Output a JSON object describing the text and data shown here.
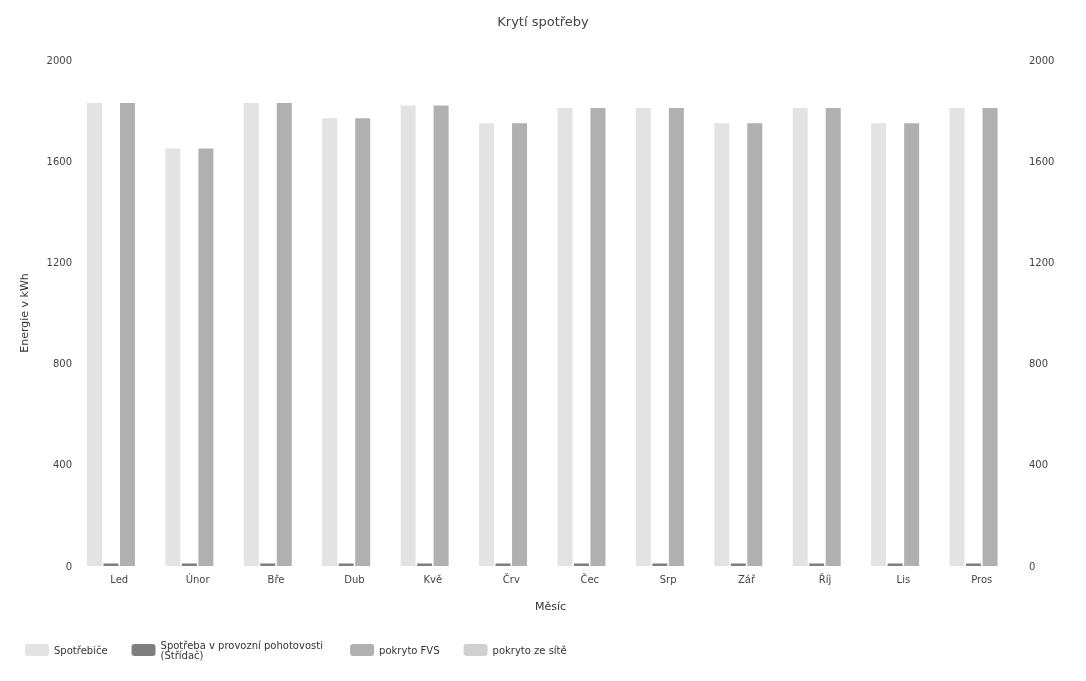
{
  "chart_data": {
    "type": "bar",
    "title": "Krytí spotřeby",
    "xlabel": "Měsíc",
    "ylabel": "Energie v kWh",
    "categories": [
      "Led",
      "Únor",
      "Bře",
      "Dub",
      "Kvě",
      "Črv",
      "Čec",
      "Srp",
      "Zář",
      "Říj",
      "Lis",
      "Pros"
    ],
    "series": [
      {
        "name": "Spotřebiče",
        "color": "#e3e3e3",
        "values": [
          1830,
          1650,
          1830,
          1770,
          1820,
          1750,
          1810,
          1810,
          1750,
          1810,
          1750,
          1810
        ]
      },
      {
        "name": "Spotřeba v provozní pohotovosti (Střídač)",
        "color": "#7f7f7f",
        "values": [
          10,
          10,
          10,
          10,
          10,
          10,
          10,
          10,
          10,
          10,
          10,
          10
        ]
      },
      {
        "name": "pokryto FVS",
        "color": "#b0b0b0",
        "values": [
          1830,
          1650,
          1830,
          1770,
          1820,
          1750,
          1810,
          1810,
          1750,
          1810,
          1750,
          1810
        ]
      },
      {
        "name": "pokryto ze sítě",
        "color": "#d0d0d0",
        "values": [
          null,
          null,
          null,
          null,
          null,
          null,
          null,
          null,
          null,
          null,
          null,
          null
        ]
      }
    ],
    "ylim": [
      0,
      2000
    ],
    "yticks": [
      0,
      400,
      800,
      1200,
      1600,
      2000
    ],
    "y2lim": [
      0,
      2000
    ],
    "y2ticks": [
      0,
      400,
      800,
      1200,
      1600,
      2000
    ],
    "grid": false,
    "legend": "bottom left"
  }
}
